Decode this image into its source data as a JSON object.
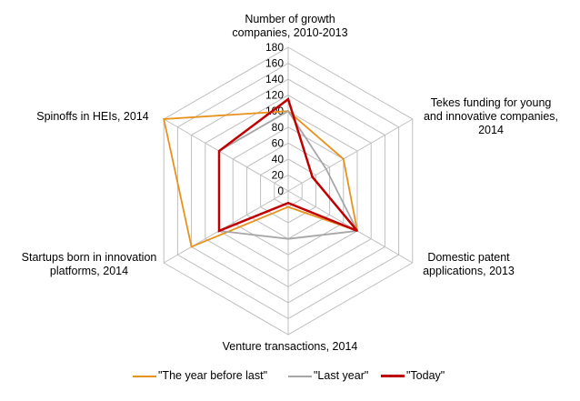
{
  "chart_data": {
    "type": "radar",
    "axes": [
      "Number of growth companies, 2010-2013",
      "Tekes funding for young and innovative companies, 2014",
      "Domestic patent applications, 2013",
      "Venture transactions, 2014",
      "Startups born in innovation platforms, 2014",
      "Spinoffs in HEIs, 2014"
    ],
    "axis_labels": {
      "a0": [
        "Number of growth",
        "companies, 2010-2013"
      ],
      "a1": [
        "Tekes funding for young",
        "and innovative companies,",
        "2014"
      ],
      "a2": [
        "Domestic patent",
        "applications, 2013"
      ],
      "a3": [
        "Venture transactions, 2014"
      ],
      "a4": [
        "Startups born in innovation",
        "platforms, 2014"
      ],
      "a5": [
        "Spinoffs in HEIs, 2014"
      ]
    },
    "rmin": 0,
    "rmax": 180,
    "ticks": [
      0,
      20,
      40,
      60,
      80,
      100,
      120,
      140,
      160,
      180
    ],
    "grid": true,
    "legend_position": "bottom",
    "series": [
      {
        "name": "\"The year before last\"",
        "color": "#E8921E",
        "values": [
          100,
          80,
          100,
          20,
          140,
          180
        ]
      },
      {
        "name": "\"Last year\"",
        "color": "#A6A6A6",
        "values": [
          100,
          55,
          100,
          60,
          100,
          100
        ]
      },
      {
        "name": "\"Today\"",
        "color": "#C00000",
        "values": [
          115,
          35,
          100,
          15,
          100,
          100
        ]
      }
    ]
  }
}
